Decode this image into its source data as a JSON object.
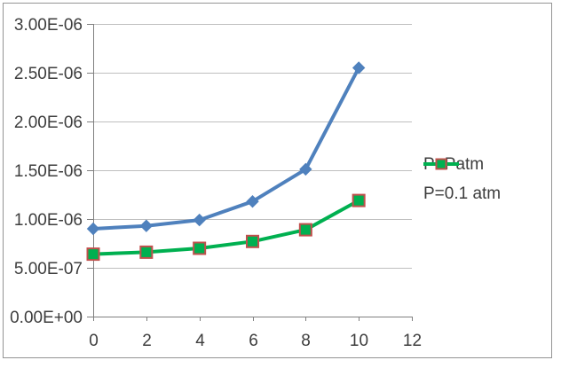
{
  "chart_data": {
    "type": "line",
    "title": "",
    "xlabel": "",
    "ylabel": "",
    "x": [
      0,
      2,
      4,
      6,
      8,
      10
    ],
    "series": [
      {
        "name": "P=Patm",
        "color": "#4f81bd",
        "marker": "diamond",
        "marker_border": "#4f81bd",
        "values": [
          9e-07,
          9.3e-07,
          9.9e-07,
          1.18e-06,
          1.51e-06,
          2.55e-06
        ]
      },
      {
        "name": "P=0.1 atm",
        "color": "#00b050",
        "marker": "square",
        "marker_border": "#c0504d",
        "values": [
          6.4e-07,
          6.6e-07,
          7e-07,
          7.7e-07,
          8.9e-07,
          1.19e-06
        ]
      }
    ],
    "xlim": [
      0,
      12
    ],
    "ylim": [
      0,
      3e-06
    ],
    "x_tick_labels": [
      "0",
      "2",
      "4",
      "6",
      "8",
      "10",
      "12"
    ],
    "y_tick_labels": [
      "0.00E+00",
      "5.00E-07",
      "1.00E-06",
      "1.50E-06",
      "2.00E-06",
      "2.50E-06",
      "3.00E-06"
    ],
    "grid": "horizontal-major",
    "legend_position": "right"
  },
  "colors": {
    "axis": "#808080",
    "gridline": "#bfbfbf",
    "tick_text": "#3d3d3d",
    "chart_border": "#949494",
    "background": "#ffffff"
  }
}
